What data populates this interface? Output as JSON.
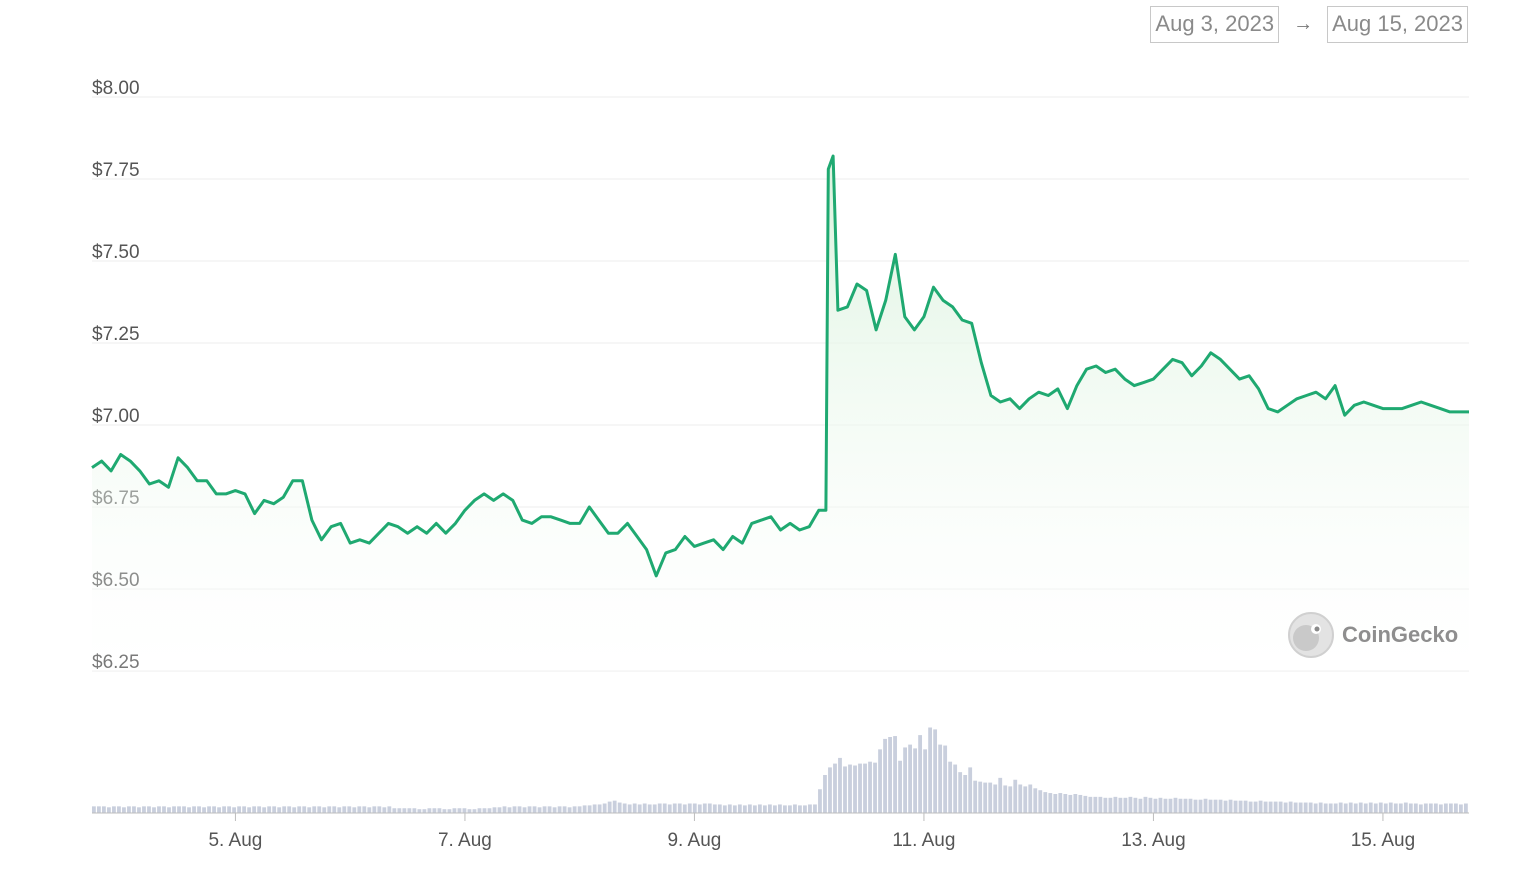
{
  "date_range": {
    "start": "Aug 3, 2023",
    "arrow": "→",
    "end": "Aug 15, 2023"
  },
  "watermark": {
    "text": "CoinGecko",
    "icon": "gecko-logo-icon"
  },
  "colors": {
    "line": "#1fa971",
    "fill_top": "#d9f2dc",
    "grid": "#eeeeee",
    "volume": "#c9cfdd"
  },
  "chart_data": {
    "type": "line",
    "title": "",
    "xlabel": "",
    "ylabel": "",
    "ylim": [
      6.25,
      8.0
    ],
    "xlim": [
      "2023-08-03T18:00",
      "2023-08-15T18:00"
    ],
    "y_ticks": [
      "$8.00",
      "$7.75",
      "$7.50",
      "$7.25",
      "$7.00",
      "$6.75",
      "$6.50",
      "$6.25"
    ],
    "y_tick_values": [
      8.0,
      7.75,
      7.5,
      7.25,
      7.0,
      6.75,
      6.5,
      6.25
    ],
    "x_ticks": [
      "5. Aug",
      "7. Aug",
      "9. Aug",
      "11. Aug",
      "13. Aug",
      "15. Aug"
    ],
    "x_tick_values": [
      "2023-08-05T00:00",
      "2023-08-07T00:00",
      "2023-08-09T00:00",
      "2023-08-11T00:00",
      "2023-08-13T00:00",
      "2023-08-15T00:00"
    ],
    "grid": true,
    "series": [
      {
        "values": [
          [
            "2023-08-03T18:00",
            6.87
          ],
          [
            "2023-08-03T20:00",
            6.89
          ],
          [
            "2023-08-03T22:00",
            6.86
          ],
          [
            "2023-08-04T00:00",
            6.91
          ],
          [
            "2023-08-04T02:00",
            6.89
          ],
          [
            "2023-08-04T04:00",
            6.86
          ],
          [
            "2023-08-04T06:00",
            6.82
          ],
          [
            "2023-08-04T08:00",
            6.83
          ],
          [
            "2023-08-04T10:00",
            6.81
          ],
          [
            "2023-08-04T12:00",
            6.9
          ],
          [
            "2023-08-04T14:00",
            6.87
          ],
          [
            "2023-08-04T16:00",
            6.83
          ],
          [
            "2023-08-04T18:00",
            6.83
          ],
          [
            "2023-08-04T20:00",
            6.79
          ],
          [
            "2023-08-04T22:00",
            6.79
          ],
          [
            "2023-08-05T00:00",
            6.8
          ],
          [
            "2023-08-05T02:00",
            6.79
          ],
          [
            "2023-08-05T04:00",
            6.73
          ],
          [
            "2023-08-05T06:00",
            6.77
          ],
          [
            "2023-08-05T08:00",
            6.76
          ],
          [
            "2023-08-05T10:00",
            6.78
          ],
          [
            "2023-08-05T12:00",
            6.83
          ],
          [
            "2023-08-05T14:00",
            6.83
          ],
          [
            "2023-08-05T16:00",
            6.71
          ],
          [
            "2023-08-05T18:00",
            6.65
          ],
          [
            "2023-08-05T20:00",
            6.69
          ],
          [
            "2023-08-05T22:00",
            6.7
          ],
          [
            "2023-08-06T00:00",
            6.64
          ],
          [
            "2023-08-06T02:00",
            6.65
          ],
          [
            "2023-08-06T04:00",
            6.64
          ],
          [
            "2023-08-06T06:00",
            6.67
          ],
          [
            "2023-08-06T08:00",
            6.7
          ],
          [
            "2023-08-06T10:00",
            6.69
          ],
          [
            "2023-08-06T12:00",
            6.67
          ],
          [
            "2023-08-06T14:00",
            6.69
          ],
          [
            "2023-08-06T16:00",
            6.67
          ],
          [
            "2023-08-06T18:00",
            6.7
          ],
          [
            "2023-08-06T20:00",
            6.67
          ],
          [
            "2023-08-06T22:00",
            6.7
          ],
          [
            "2023-08-07T00:00",
            6.74
          ],
          [
            "2023-08-07T02:00",
            6.77
          ],
          [
            "2023-08-07T04:00",
            6.79
          ],
          [
            "2023-08-07T06:00",
            6.77
          ],
          [
            "2023-08-07T08:00",
            6.79
          ],
          [
            "2023-08-07T10:00",
            6.77
          ],
          [
            "2023-08-07T12:00",
            6.71
          ],
          [
            "2023-08-07T14:00",
            6.7
          ],
          [
            "2023-08-07T16:00",
            6.72
          ],
          [
            "2023-08-07T18:00",
            6.72
          ],
          [
            "2023-08-07T20:00",
            6.71
          ],
          [
            "2023-08-07T22:00",
            6.7
          ],
          [
            "2023-08-08T00:00",
            6.7
          ],
          [
            "2023-08-08T02:00",
            6.75
          ],
          [
            "2023-08-08T04:00",
            6.71
          ],
          [
            "2023-08-08T06:00",
            6.67
          ],
          [
            "2023-08-08T08:00",
            6.67
          ],
          [
            "2023-08-08T10:00",
            6.7
          ],
          [
            "2023-08-08T12:00",
            6.66
          ],
          [
            "2023-08-08T14:00",
            6.62
          ],
          [
            "2023-08-08T16:00",
            6.54
          ],
          [
            "2023-08-08T18:00",
            6.61
          ],
          [
            "2023-08-08T20:00",
            6.62
          ],
          [
            "2023-08-08T22:00",
            6.66
          ],
          [
            "2023-08-09T00:00",
            6.63
          ],
          [
            "2023-08-09T02:00",
            6.64
          ],
          [
            "2023-08-09T04:00",
            6.65
          ],
          [
            "2023-08-09T06:00",
            6.62
          ],
          [
            "2023-08-09T08:00",
            6.66
          ],
          [
            "2023-08-09T10:00",
            6.64
          ],
          [
            "2023-08-09T12:00",
            6.7
          ],
          [
            "2023-08-09T14:00",
            6.71
          ],
          [
            "2023-08-09T16:00",
            6.72
          ],
          [
            "2023-08-09T18:00",
            6.68
          ],
          [
            "2023-08-09T20:00",
            6.7
          ],
          [
            "2023-08-09T22:00",
            6.68
          ],
          [
            "2023-08-10T00:00",
            6.69
          ],
          [
            "2023-08-10T02:00",
            6.74
          ],
          [
            "2023-08-10T03:30",
            6.74
          ],
          [
            "2023-08-10T04:00",
            7.78
          ],
          [
            "2023-08-10T05:00",
            7.82
          ],
          [
            "2023-08-10T06:00",
            7.35
          ],
          [
            "2023-08-10T08:00",
            7.36
          ],
          [
            "2023-08-10T10:00",
            7.43
          ],
          [
            "2023-08-10T12:00",
            7.41
          ],
          [
            "2023-08-10T14:00",
            7.29
          ],
          [
            "2023-08-10T16:00",
            7.38
          ],
          [
            "2023-08-10T18:00",
            7.52
          ],
          [
            "2023-08-10T20:00",
            7.33
          ],
          [
            "2023-08-10T22:00",
            7.29
          ],
          [
            "2023-08-11T00:00",
            7.33
          ],
          [
            "2023-08-11T02:00",
            7.42
          ],
          [
            "2023-08-11T04:00",
            7.38
          ],
          [
            "2023-08-11T06:00",
            7.36
          ],
          [
            "2023-08-11T08:00",
            7.32
          ],
          [
            "2023-08-11T10:00",
            7.31
          ],
          [
            "2023-08-11T12:00",
            7.19
          ],
          [
            "2023-08-11T14:00",
            7.09
          ],
          [
            "2023-08-11T16:00",
            7.07
          ],
          [
            "2023-08-11T18:00",
            7.08
          ],
          [
            "2023-08-11T20:00",
            7.05
          ],
          [
            "2023-08-11T22:00",
            7.08
          ],
          [
            "2023-08-12T00:00",
            7.1
          ],
          [
            "2023-08-12T02:00",
            7.09
          ],
          [
            "2023-08-12T04:00",
            7.11
          ],
          [
            "2023-08-12T06:00",
            7.05
          ],
          [
            "2023-08-12T08:00",
            7.12
          ],
          [
            "2023-08-12T10:00",
            7.17
          ],
          [
            "2023-08-12T12:00",
            7.18
          ],
          [
            "2023-08-12T14:00",
            7.16
          ],
          [
            "2023-08-12T16:00",
            7.17
          ],
          [
            "2023-08-12T18:00",
            7.14
          ],
          [
            "2023-08-12T20:00",
            7.12
          ],
          [
            "2023-08-12T22:00",
            7.13
          ],
          [
            "2023-08-13T00:00",
            7.14
          ],
          [
            "2023-08-13T02:00",
            7.17
          ],
          [
            "2023-08-13T04:00",
            7.2
          ],
          [
            "2023-08-13T06:00",
            7.19
          ],
          [
            "2023-08-13T08:00",
            7.15
          ],
          [
            "2023-08-13T10:00",
            7.18
          ],
          [
            "2023-08-13T12:00",
            7.22
          ],
          [
            "2023-08-13T14:00",
            7.2
          ],
          [
            "2023-08-13T16:00",
            7.17
          ],
          [
            "2023-08-13T18:00",
            7.14
          ],
          [
            "2023-08-13T20:00",
            7.15
          ],
          [
            "2023-08-13T22:00",
            7.11
          ],
          [
            "2023-08-14T00:00",
            7.05
          ],
          [
            "2023-08-14T02:00",
            7.04
          ],
          [
            "2023-08-14T04:00",
            7.06
          ],
          [
            "2023-08-14T06:00",
            7.08
          ],
          [
            "2023-08-14T08:00",
            7.09
          ],
          [
            "2023-08-14T10:00",
            7.1
          ],
          [
            "2023-08-14T12:00",
            7.08
          ],
          [
            "2023-08-14T14:00",
            7.12
          ],
          [
            "2023-08-14T16:00",
            7.03
          ],
          [
            "2023-08-14T18:00",
            7.06
          ],
          [
            "2023-08-14T20:00",
            7.07
          ],
          [
            "2023-08-14T22:00",
            7.06
          ],
          [
            "2023-08-15T00:00",
            7.05
          ],
          [
            "2023-08-15T02:00",
            7.05
          ],
          [
            "2023-08-15T04:00",
            7.05
          ],
          [
            "2023-08-15T06:00",
            7.06
          ],
          [
            "2023-08-15T08:00",
            7.07
          ],
          [
            "2023-08-15T10:00",
            7.06
          ],
          [
            "2023-08-15T12:00",
            7.05
          ],
          [
            "2023-08-15T14:00",
            7.04
          ],
          [
            "2023-08-15T16:00",
            7.04
          ],
          [
            "2023-08-15T18:00",
            7.04
          ]
        ]
      }
    ],
    "volume_relative": [
      0.07,
      0.07,
      0.07,
      0.06,
      0.07,
      0.07,
      0.06,
      0.07,
      0.07,
      0.06,
      0.07,
      0.07,
      0.06,
      0.07,
      0.07,
      0.06,
      0.07,
      0.07,
      0.07,
      0.06,
      0.07,
      0.07,
      0.06,
      0.07,
      0.07,
      0.06,
      0.07,
      0.07,
      0.06,
      0.07,
      0.07,
      0.06,
      0.07,
      0.07,
      0.06,
      0.07,
      0.07,
      0.06,
      0.07,
      0.07,
      0.06,
      0.07,
      0.07,
      0.06,
      0.07,
      0.07,
      0.06,
      0.07,
      0.07,
      0.06,
      0.07,
      0.07,
      0.06,
      0.07,
      0.07,
      0.06,
      0.07,
      0.07,
      0.06,
      0.07,
      0.05,
      0.05,
      0.05,
      0.05,
      0.05,
      0.04,
      0.04,
      0.05,
      0.05,
      0.05,
      0.04,
      0.04,
      0.05,
      0.05,
      0.05,
      0.04,
      0.04,
      0.05,
      0.05,
      0.05,
      0.06,
      0.06,
      0.07,
      0.06,
      0.07,
      0.07,
      0.06,
      0.07,
      0.07,
      0.06,
      0.07,
      0.07,
      0.06,
      0.07,
      0.07,
      0.06,
      0.07,
      0.07,
      0.08,
      0.08,
      0.09,
      0.09,
      0.1,
      0.12,
      0.13,
      0.11,
      0.1,
      0.09,
      0.1,
      0.09,
      0.1,
      0.09,
      0.09,
      0.1,
      0.1,
      0.09,
      0.1,
      0.1,
      0.09,
      0.1,
      0.1,
      0.09,
      0.1,
      0.1,
      0.09,
      0.09,
      0.08,
      0.09,
      0.08,
      0.09,
      0.08,
      0.09,
      0.08,
      0.09,
      0.08,
      0.09,
      0.08,
      0.09,
      0.08,
      0.08,
      0.09,
      0.08,
      0.08,
      0.09,
      0.09,
      0.25,
      0.4,
      0.48,
      0.52,
      0.58,
      0.49,
      0.51,
      0.5,
      0.52,
      0.52,
      0.54,
      0.53,
      0.67,
      0.78,
      0.8,
      0.81,
      0.55,
      0.69,
      0.72,
      0.68,
      0.82,
      0.67,
      0.9,
      0.88,
      0.72,
      0.71,
      0.54,
      0.51,
      0.43,
      0.4,
      0.48,
      0.34,
      0.33,
      0.32,
      0.32,
      0.3,
      0.37,
      0.29,
      0.28,
      0.35,
      0.3,
      0.28,
      0.3,
      0.26,
      0.24,
      0.22,
      0.21,
      0.2,
      0.21,
      0.2,
      0.19,
      0.2,
      0.19,
      0.18,
      0.17,
      0.17,
      0.17,
      0.16,
      0.16,
      0.17,
      0.16,
      0.16,
      0.17,
      0.16,
      0.15,
      0.17,
      0.16,
      0.15,
      0.16,
      0.15,
      0.15,
      0.16,
      0.15,
      0.15,
      0.15,
      0.14,
      0.14,
      0.15,
      0.14,
      0.14,
      0.14,
      0.13,
      0.14,
      0.13,
      0.13,
      0.13,
      0.12,
      0.12,
      0.13,
      0.12,
      0.12,
      0.12,
      0.12,
      0.11,
      0.12,
      0.11,
      0.11,
      0.11,
      0.11,
      0.1,
      0.11,
      0.1,
      0.1,
      0.1,
      0.11,
      0.1,
      0.11,
      0.1,
      0.11,
      0.1,
      0.11,
      0.1,
      0.11,
      0.1,
      0.11,
      0.1,
      0.1,
      0.11,
      0.1,
      0.1,
      0.09,
      0.1,
      0.1,
      0.1,
      0.09,
      0.1,
      0.1,
      0.1,
      0.09,
      0.1
    ]
  }
}
